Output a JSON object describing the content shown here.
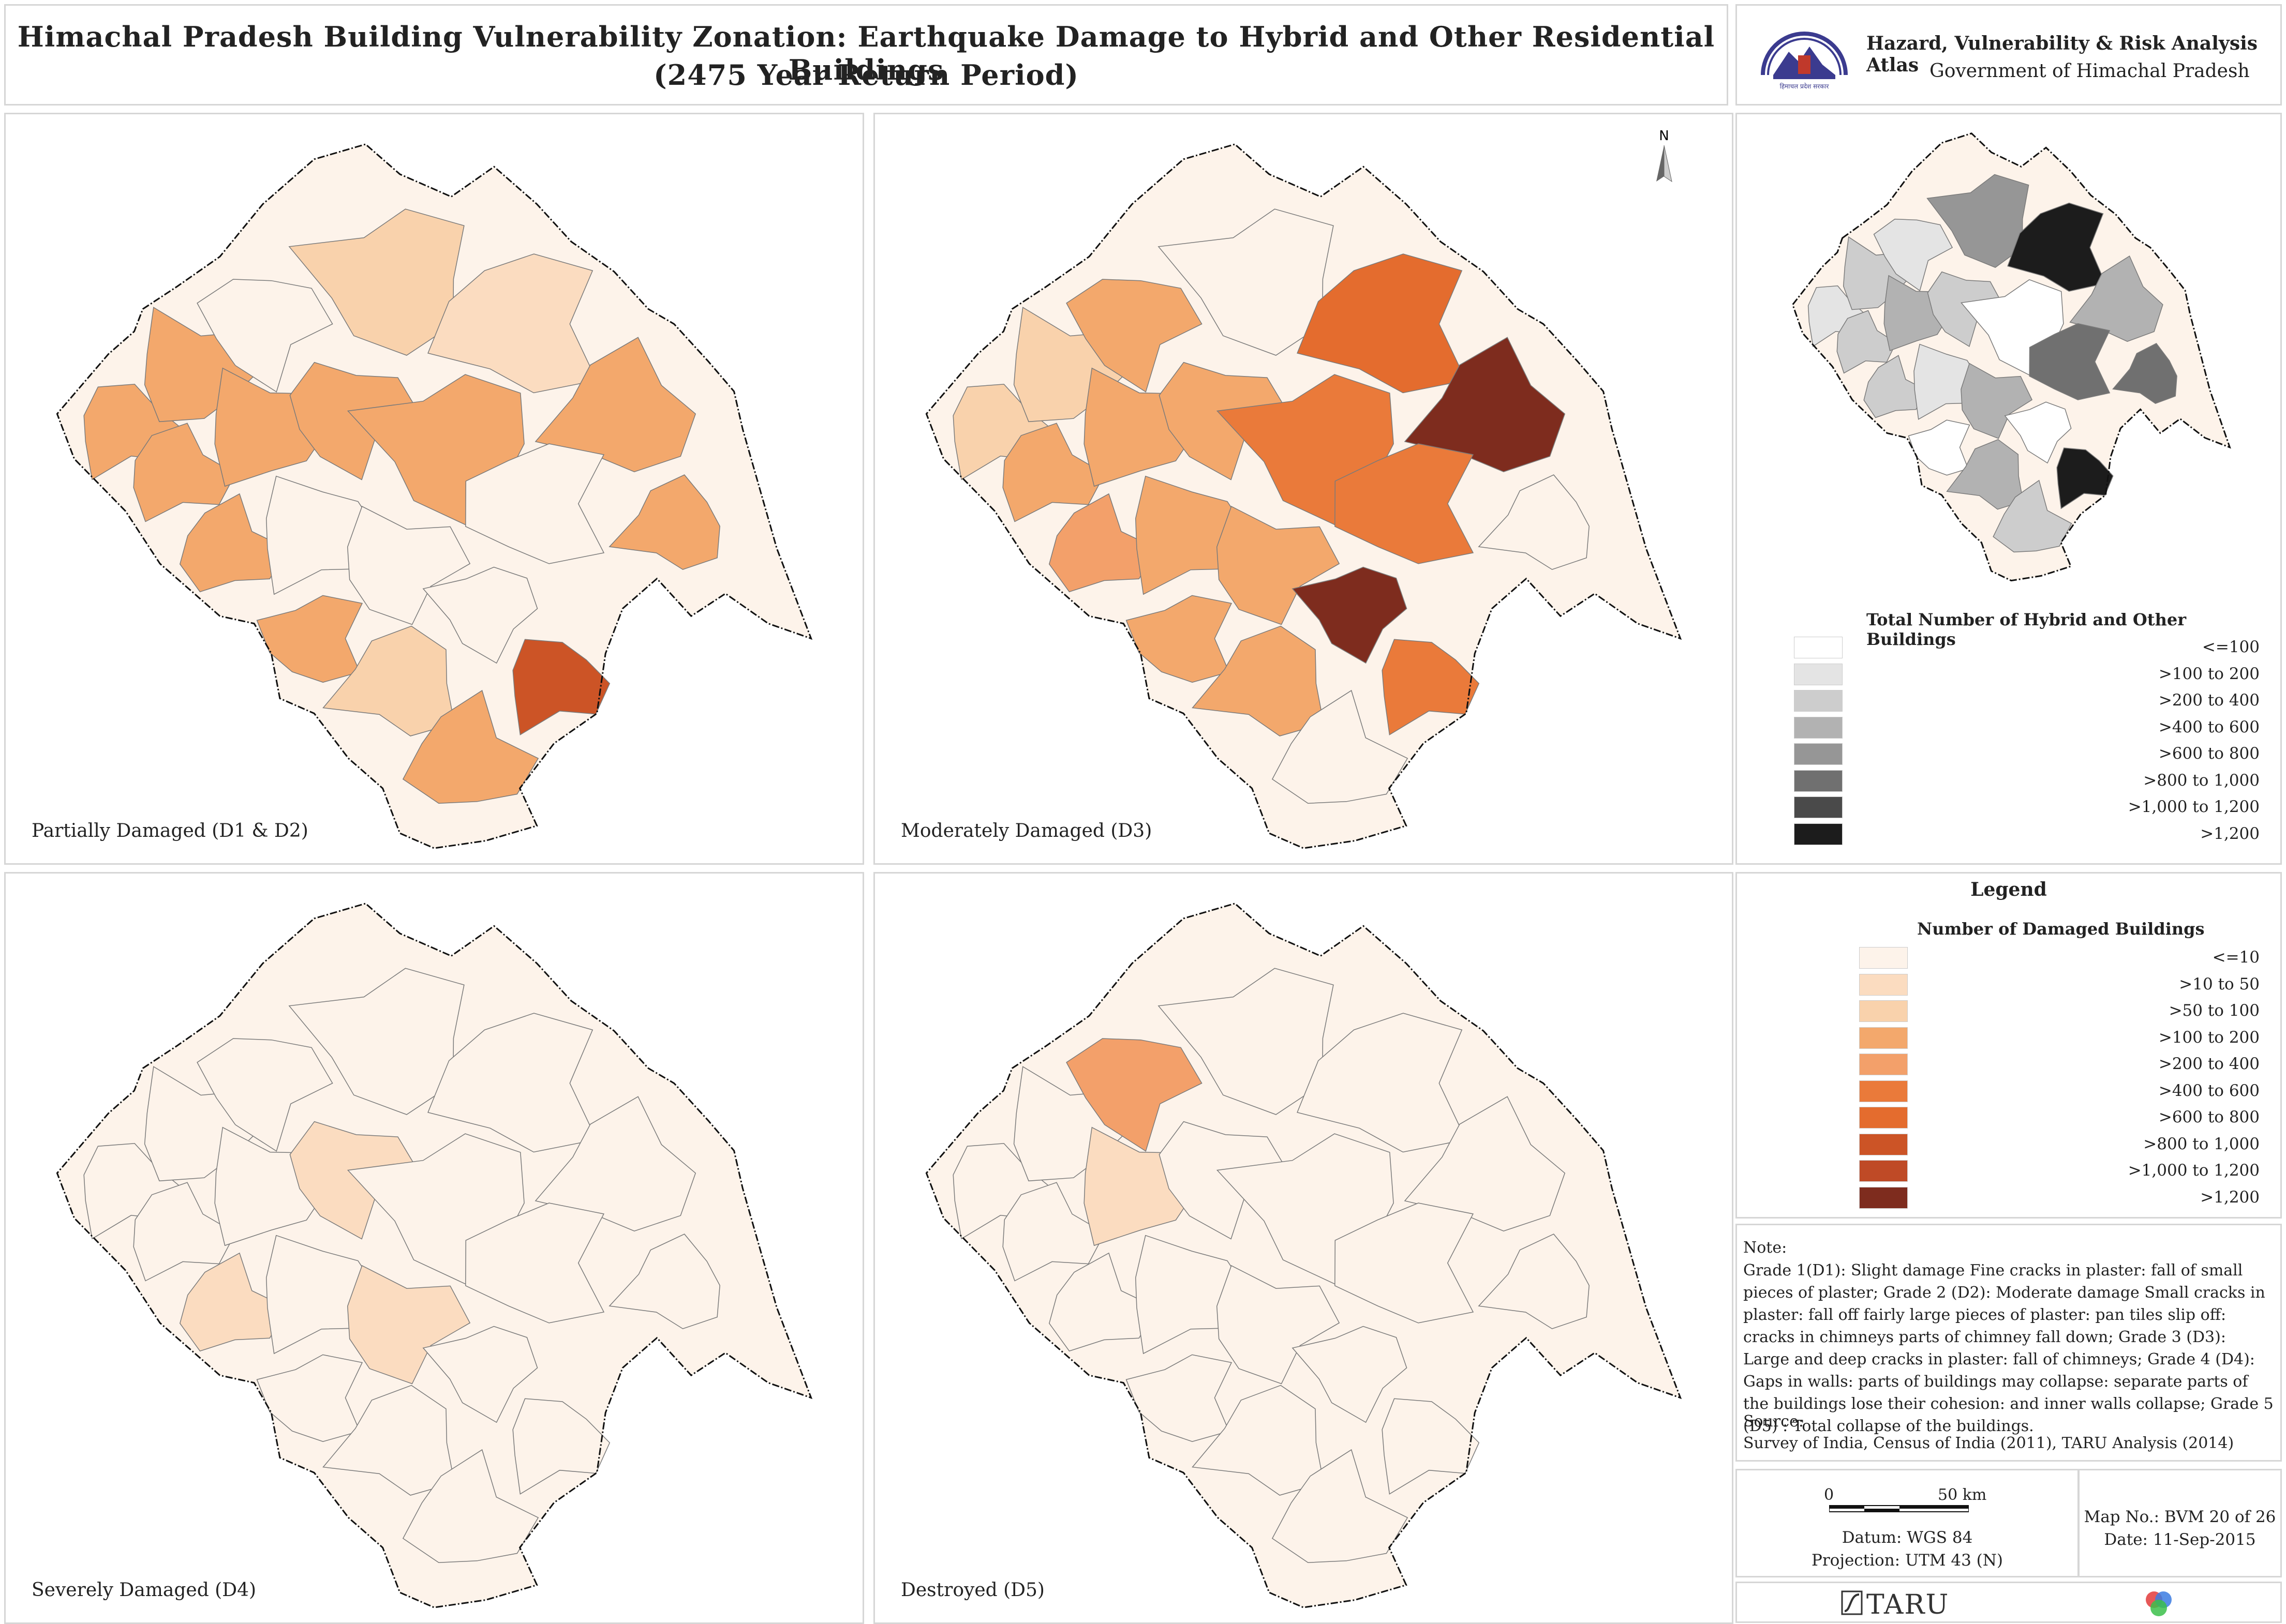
{
  "title": {
    "line1": "Himachal Pradesh Building Vulnerability Zonation: Earthquake Damage to Hybrid and Other Residential Buildings",
    "line2": "(2475 Year Return Period)"
  },
  "atlas": {
    "name": "Hazard, Vulnerability & Risk Analysis Atlas",
    "government": "Government of Himachal Pradesh",
    "logo_icon": "himachal-emblem-icon",
    "logo_caption": "हिमाचल प्रदेश सरकार"
  },
  "maps": [
    {
      "id": "d12",
      "label": "Partially Damaged (D1 & D2)"
    },
    {
      "id": "d3",
      "label": "Moderately Damaged (D3)",
      "north_arrow": "N"
    },
    {
      "id": "d4",
      "label": "Severely Damaged (D4)"
    },
    {
      "id": "d5",
      "label": "Destroyed (D5)"
    }
  ],
  "total_legend": {
    "title": "Total Number of Hybrid and Other Buildings",
    "classes": [
      {
        "label": "<=100",
        "color": "#ffffff"
      },
      {
        "label": ">100 to 200",
        "color": "#e4e4e4"
      },
      {
        "label": ">200 to 400",
        "color": "#cdcdcd"
      },
      {
        "label": ">400 to 600",
        "color": "#b2b2b2"
      },
      {
        "label": ">600 to 800",
        "color": "#969696"
      },
      {
        "label": ">800 to 1,000",
        "color": "#707070"
      },
      {
        "label": ">1,000 to 1,200",
        "color": "#4a4a4a"
      },
      {
        "label": ">1,200",
        "color": "#1c1c1c"
      }
    ]
  },
  "damage_legend": {
    "heading": "Legend",
    "title": "Number of Damaged Buildings",
    "classes": [
      {
        "label": "<=10",
        "color": "#fdf3ea"
      },
      {
        "label": ">10 to 50",
        "color": "#fbdcc0"
      },
      {
        "label": ">50 to 100",
        "color": "#f9d2ac"
      },
      {
        "label": ">100 to 200",
        "color": "#f3a86c"
      },
      {
        "label": ">200 to 400",
        "color": "#f3a06a"
      },
      {
        "label": ">400 to 600",
        "color": "#ea7a3a"
      },
      {
        "label": ">600 to 800",
        "color": "#e46c2e"
      },
      {
        "label": ">800 to 1,000",
        "color": "#cc5426"
      },
      {
        "label": ">1,000 to 1,200",
        "color": "#bf4a26"
      },
      {
        "label": ">1,200",
        "color": "#7e2c1e"
      }
    ]
  },
  "note": {
    "label": "Note:",
    "text": "Grade 1(D1): Slight damage Fine cracks in plaster: fall of small pieces of plaster; Grade 2 (D2): Moderate damage Small cracks in plaster: fall off fairly large pieces of plaster: pan tiles slip off: cracks in chimneys parts of chimney fall down; Grade 3 (D3): Large and deep cracks in plaster: fall of chimneys; Grade 4 (D4): Gaps in walls: parts of buildings may collapse: separate parts of the buildings lose their cohesion: and inner walls collapse; Grade 5 (D5) : Total collapse of the buildings.",
    "source_label": "Source:",
    "source_text": "Survey of India, Census of India (2011),  TARU Analysis (2014)"
  },
  "scale": {
    "zero": "0",
    "max": "50 km",
    "datum": "Datum: WGS 84",
    "projection": "Projection: UTM 43 (N)"
  },
  "map_info": {
    "map_no": "Map No.: BVM 20 of 26",
    "date": "Date: 11-Sep-2015"
  },
  "footer": {
    "brand": "TARU",
    "brand_icon": "taru-logo-icon",
    "partner_icon": "tri-circle-logo-icon"
  }
}
